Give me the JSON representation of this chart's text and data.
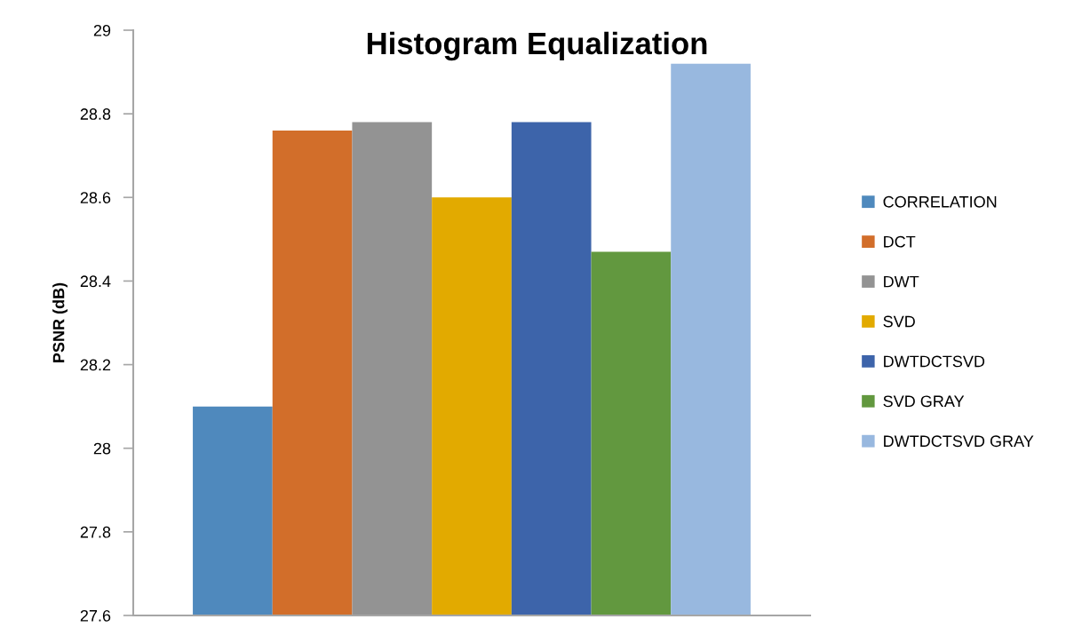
{
  "chart_data": {
    "type": "bar",
    "title": "Histogram Equalization",
    "ylabel": "PSNR (dB)",
    "categories": [
      null
    ],
    "series": [
      {
        "name": "CORRELATION",
        "color": "#4f89bd",
        "values": [
          28.1
        ]
      },
      {
        "name": "DCT",
        "color": "#d26e2a",
        "values": [
          28.76
        ]
      },
      {
        "name": "DWT",
        "color": "#939393",
        "values": [
          28.78
        ]
      },
      {
        "name": "SVD",
        "color": "#e2aa00",
        "values": [
          28.6
        ]
      },
      {
        "name": "DWTDCTSVD",
        "color": "#3d64aa",
        "values": [
          28.78
        ]
      },
      {
        "name": "SVD GRAY",
        "color": "#62983f",
        "values": [
          28.47
        ]
      },
      {
        "name": "DWTDCTSVD GRAY",
        "color": "#98b8df",
        "values": [
          28.92
        ]
      }
    ],
    "ylim": [
      27.6,
      29
    ],
    "yticks": [
      27.6,
      27.8,
      28,
      28.2,
      28.4,
      28.6,
      28.8,
      29
    ],
    "legend": "right"
  }
}
